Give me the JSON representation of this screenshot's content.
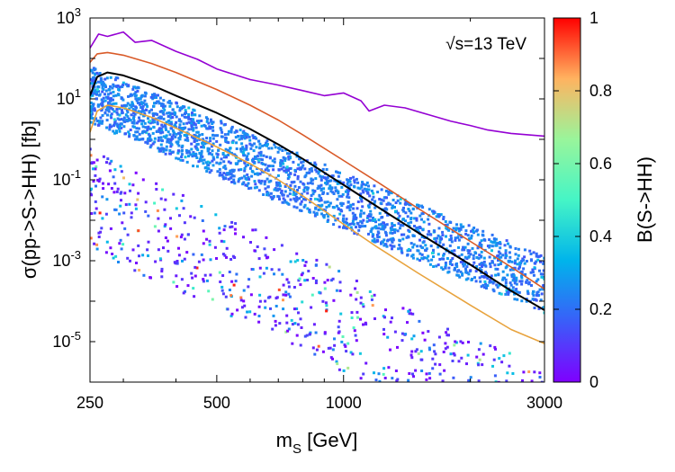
{
  "chart_data": {
    "type": "scatter",
    "annotation": {
      "sqrt": "√",
      "text": "s=13 TeV"
    },
    "xlabel": {
      "main": "m",
      "sub": "S",
      "unit": " [GeV]"
    },
    "ylabel": "σ(pp->S->HH) [fb]",
    "xscale": "log",
    "yscale": "log",
    "xlim": [
      250,
      3000
    ],
    "ylim": [
      1e-06,
      1000
    ],
    "x_ticks": [
      {
        "value": 250,
        "label": "250"
      },
      {
        "value": 500,
        "label": "500"
      },
      {
        "value": 1000,
        "label": "1000"
      },
      {
        "value": 3000,
        "label": "3000"
      }
    ],
    "y_ticks": [
      {
        "value": 1000,
        "base": "10",
        "exp": "3"
      },
      {
        "value": 10,
        "base": "10",
        "exp": "1"
      },
      {
        "value": 0.1,
        "base": "10",
        "exp": "-1"
      },
      {
        "value": 0.001,
        "base": "10",
        "exp": "-3"
      },
      {
        "value": 1e-05,
        "base": "10",
        "exp": "-5"
      }
    ],
    "colorbar": {
      "label": "B(S->HH)",
      "range": [
        0,
        1
      ],
      "ticks": [
        {
          "value": 0,
          "label": "0"
        },
        {
          "value": 0.2,
          "label": "0.2"
        },
        {
          "value": 0.4,
          "label": "0.4"
        },
        {
          "value": 0.6,
          "label": "0.6"
        },
        {
          "value": 0.8,
          "label": "0.8"
        },
        {
          "value": 1,
          "label": "1"
        }
      ],
      "palette": [
        "#7f00ff",
        "#3a5ef9",
        "#00b4eb",
        "#45f5c6",
        "#99f59b",
        "#ffb360",
        "#ff0000"
      ]
    },
    "curves": [
      {
        "color": "#9400d3",
        "points": [
          [
            250,
            180
          ],
          [
            262,
            400
          ],
          [
            275,
            350
          ],
          [
            300,
            450
          ],
          [
            320,
            250
          ],
          [
            350,
            280
          ],
          [
            400,
            150
          ],
          [
            450,
            95
          ],
          [
            500,
            55
          ],
          [
            550,
            40
          ],
          [
            600,
            30
          ],
          [
            700,
            22
          ],
          [
            800,
            16
          ],
          [
            900,
            12
          ],
          [
            1000,
            14
          ],
          [
            1100,
            9
          ],
          [
            1150,
            5
          ],
          [
            1250,
            7
          ],
          [
            1400,
            6
          ],
          [
            1600,
            4
          ],
          [
            1800,
            2.8
          ],
          [
            2000,
            2.2
          ],
          [
            2200,
            1.7
          ],
          [
            2500,
            1.4
          ],
          [
            3000,
            1.2
          ]
        ]
      },
      {
        "color": "#d95a28",
        "points": [
          [
            250,
            80
          ],
          [
            260,
            130
          ],
          [
            275,
            140
          ],
          [
            300,
            120
          ],
          [
            350,
            75
          ],
          [
            400,
            45
          ],
          [
            500,
            17
          ],
          [
            600,
            7
          ],
          [
            700,
            3
          ],
          [
            800,
            1.3
          ],
          [
            1000,
            0.3
          ],
          [
            1200,
            0.09
          ],
          [
            1500,
            0.02
          ],
          [
            2000,
            0.003
          ],
          [
            2500,
            0.0007
          ],
          [
            3000,
            0.0002
          ]
        ]
      },
      {
        "color": "#000000",
        "points": [
          [
            250,
            12
          ],
          [
            260,
            35
          ],
          [
            275,
            45
          ],
          [
            300,
            38
          ],
          [
            350,
            22
          ],
          [
            400,
            12
          ],
          [
            500,
            4.5
          ],
          [
            600,
            1.8
          ],
          [
            700,
            0.75
          ],
          [
            800,
            0.33
          ],
          [
            1000,
            0.075
          ],
          [
            1200,
            0.022
          ],
          [
            1500,
            0.005
          ],
          [
            2000,
            0.0008
          ],
          [
            2500,
            0.00018
          ],
          [
            3000,
            6e-05
          ]
        ]
      },
      {
        "color": "#e8a33d",
        "points": [
          [
            250,
            1.5
          ],
          [
            260,
            5
          ],
          [
            275,
            7
          ],
          [
            300,
            6
          ],
          [
            350,
            3.5
          ],
          [
            400,
            1.9
          ],
          [
            500,
            0.65
          ],
          [
            600,
            0.25
          ],
          [
            700,
            0.1
          ],
          [
            800,
            0.04
          ],
          [
            1000,
            0.008
          ],
          [
            1200,
            0.0022
          ],
          [
            1500,
            0.0005
          ],
          [
            2000,
            8e-05
          ],
          [
            2500,
            2e-05
          ],
          [
            3000,
            9e-06
          ]
        ]
      }
    ],
    "scatter_clusters": [
      {
        "x": [
          250,
          3000
        ],
        "y_start": [
          15,
          0.0003
        ],
        "spread_dex": 1.4,
        "z": [
          0.15,
          0.3
        ],
        "count": 2200
      },
      {
        "x": [
          250,
          3000
        ],
        "y_start": [
          0.3,
          1e-06
        ],
        "spread_dex": 2.5,
        "z": [
          0.0,
          1.0
        ],
        "count": 700
      }
    ]
  }
}
